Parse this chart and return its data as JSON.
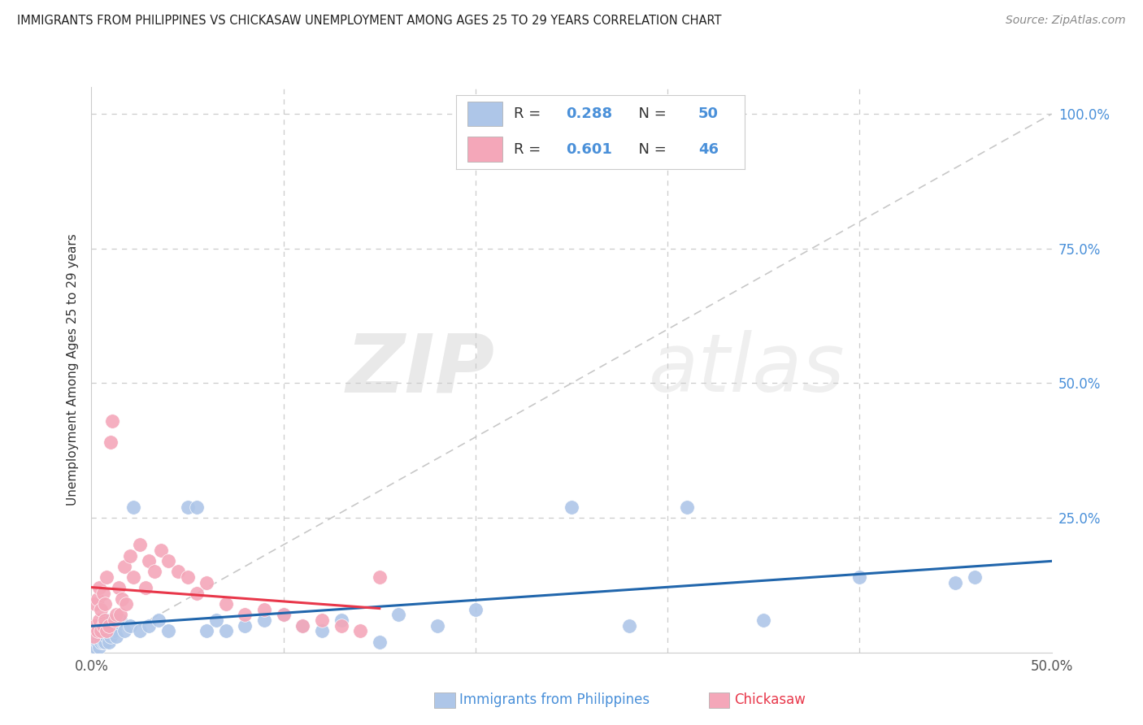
{
  "title": "IMMIGRANTS FROM PHILIPPINES VS CHICKASAW UNEMPLOYMENT AMONG AGES 25 TO 29 YEARS CORRELATION CHART",
  "source": "Source: ZipAtlas.com",
  "ylabel": "Unemployment Among Ages 25 to 29 years",
  "legend_label_1": "Immigrants from Philippines",
  "legend_label_2": "Chickasaw",
  "R1": "0.288",
  "N1": "50",
  "R2": "0.601",
  "N2": "46",
  "color1": "#aec6e8",
  "color2": "#f4a7b9",
  "line_color1": "#2166ac",
  "line_color2": "#e8374a",
  "ref_line_color": "#cccccc",
  "xlim": [
    0,
    0.5
  ],
  "ylim": [
    0,
    1.05
  ],
  "yticks_right": [
    0.25,
    0.5,
    0.75,
    1.0
  ],
  "ytick_labels_right": [
    "25.0%",
    "50.0%",
    "75.0%",
    "100.0%"
  ],
  "watermark_zip": "ZIP",
  "watermark_atlas": "atlas",
  "blue_scatter_x": [
    0.001,
    0.002,
    0.002,
    0.003,
    0.003,
    0.004,
    0.004,
    0.005,
    0.005,
    0.006,
    0.006,
    0.007,
    0.007,
    0.008,
    0.008,
    0.009,
    0.01,
    0.011,
    0.012,
    0.013,
    0.015,
    0.017,
    0.02,
    0.022,
    0.025,
    0.03,
    0.035,
    0.04,
    0.05,
    0.055,
    0.06,
    0.065,
    0.07,
    0.08,
    0.09,
    0.1,
    0.11,
    0.12,
    0.13,
    0.15,
    0.16,
    0.18,
    0.2,
    0.25,
    0.28,
    0.31,
    0.35,
    0.4,
    0.45,
    0.46
  ],
  "blue_scatter_y": [
    0.02,
    0.01,
    0.04,
    0.02,
    0.05,
    0.01,
    0.03,
    0.02,
    0.04,
    0.02,
    0.05,
    0.02,
    0.04,
    0.03,
    0.06,
    0.02,
    0.03,
    0.05,
    0.04,
    0.03,
    0.06,
    0.04,
    0.05,
    0.27,
    0.04,
    0.05,
    0.06,
    0.04,
    0.27,
    0.27,
    0.04,
    0.06,
    0.04,
    0.05,
    0.06,
    0.07,
    0.05,
    0.04,
    0.06,
    0.02,
    0.07,
    0.05,
    0.08,
    0.27,
    0.05,
    0.27,
    0.06,
    0.14,
    0.13,
    0.14
  ],
  "pink_scatter_x": [
    0.001,
    0.002,
    0.002,
    0.003,
    0.003,
    0.004,
    0.004,
    0.005,
    0.005,
    0.006,
    0.006,
    0.007,
    0.007,
    0.008,
    0.008,
    0.009,
    0.01,
    0.011,
    0.012,
    0.013,
    0.014,
    0.015,
    0.016,
    0.017,
    0.018,
    0.02,
    0.022,
    0.025,
    0.028,
    0.03,
    0.033,
    0.036,
    0.04,
    0.045,
    0.05,
    0.055,
    0.06,
    0.07,
    0.08,
    0.09,
    0.1,
    0.11,
    0.12,
    0.13,
    0.14,
    0.15
  ],
  "pink_scatter_y": [
    0.03,
    0.05,
    0.09,
    0.04,
    0.1,
    0.06,
    0.12,
    0.04,
    0.08,
    0.05,
    0.11,
    0.06,
    0.09,
    0.04,
    0.14,
    0.05,
    0.39,
    0.43,
    0.06,
    0.07,
    0.12,
    0.07,
    0.1,
    0.16,
    0.09,
    0.18,
    0.14,
    0.2,
    0.12,
    0.17,
    0.15,
    0.19,
    0.17,
    0.15,
    0.14,
    0.11,
    0.13,
    0.09,
    0.07,
    0.08,
    0.07,
    0.05,
    0.06,
    0.05,
    0.04,
    0.14
  ]
}
